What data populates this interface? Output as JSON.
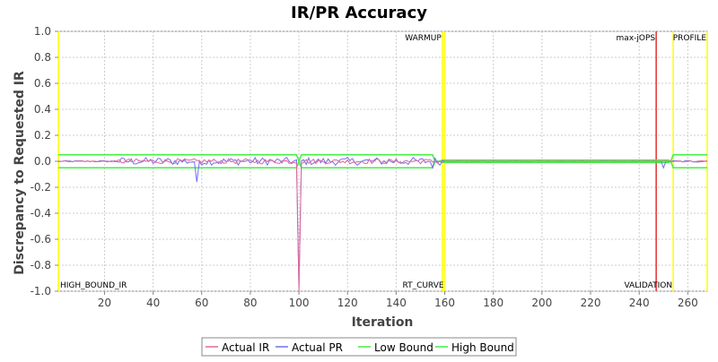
{
  "chart_data": {
    "type": "line",
    "title": "IR/PR Accuracy",
    "xlabel": "Iteration",
    "ylabel": "Discrepancy to Requested IR",
    "xlim": [
      1,
      268
    ],
    "ylim": [
      -1.0,
      1.0
    ],
    "x_ticks": [
      20,
      40,
      60,
      80,
      100,
      120,
      140,
      160,
      180,
      200,
      220,
      240,
      260
    ],
    "y_ticks": [
      "1.0",
      "0.8",
      "0.6",
      "0.4",
      "0.2",
      "0.0",
      "-0.2",
      "-0.4",
      "-0.6",
      "-0.8",
      "-1.0"
    ],
    "grid": true,
    "legend_position": "bottom",
    "series": [
      {
        "name": "Actual IR",
        "color": "#e0689a"
      },
      {
        "name": "Actual PR",
        "color": "#7070f0"
      },
      {
        "name": "Low Bound",
        "color": "#44ee44"
      },
      {
        "name": "High Bound",
        "color": "#44ee44"
      }
    ],
    "bounds": {
      "segments": [
        {
          "x": [
            1,
            99
          ],
          "value": 0.05
        },
        {
          "x": [
            101,
            155
          ],
          "value": 0.05
        },
        {
          "x": [
            159,
            252
          ],
          "value": 0.01
        },
        {
          "x": [
            254,
            268
          ],
          "value": 0.05
        }
      ]
    },
    "spikes": {
      "ir": [
        {
          "x": 100,
          "y": -1.0
        }
      ],
      "pr": [
        {
          "x": 58,
          "y": -0.16
        },
        {
          "x": 100,
          "y": -0.98
        },
        {
          "x": 155,
          "y": -0.05
        },
        {
          "x": 250,
          "y": -0.05
        }
      ]
    },
    "markers": [
      {
        "label": "WARMUP",
        "x": 159,
        "color": "#ffff00",
        "position": "top"
      },
      {
        "label": "RT_CURVE",
        "x": 160,
        "color": "#ffff00",
        "position": "bottom"
      },
      {
        "label": "max-jOPS",
        "x": 247,
        "color": "#e03030",
        "position": "top"
      },
      {
        "label": "VALIDATION",
        "x": 254,
        "color": "#ffff00",
        "position": "bottom"
      },
      {
        "label": "PROFILE",
        "x": 268,
        "color": "#ffff00",
        "position": "top"
      },
      {
        "label": "HIGH_BOUND_IR",
        "x": 1,
        "color": "#ffff00",
        "position": "bottom"
      }
    ]
  }
}
